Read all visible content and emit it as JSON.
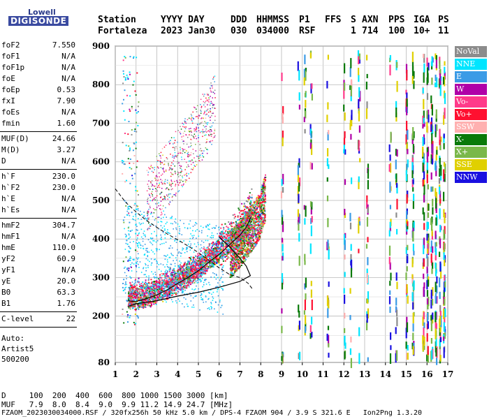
{
  "logo": {
    "line1": "Lowell",
    "line2": "DIGISONDE"
  },
  "header": {
    "row1": [
      "Station",
      "YYYY DAY",
      "DDD",
      "HHMMSS",
      "P1",
      "FFS",
      "S",
      "AXN",
      "PPS",
      "IGA",
      "PS"
    ],
    "row2": [
      "Fortaleza",
      "2023 Jan30",
      "030",
      "034000",
      "RSF",
      "1",
      "714",
      "100",
      "10+",
      "11"
    ]
  },
  "parameters": {
    "group1": [
      {
        "name": "foF2",
        "value": "7.550"
      },
      {
        "name": "foF1",
        "value": "N/A"
      },
      {
        "name": "foF1p",
        "value": "N/A"
      },
      {
        "name": "foE",
        "value": "N/A"
      },
      {
        "name": "foEp",
        "value": "0.53"
      },
      {
        "name": "fxI",
        "value": "7.90"
      },
      {
        "name": "foEs",
        "value": "N/A"
      },
      {
        "name": "fmin",
        "value": "1.60"
      }
    ],
    "group2": [
      {
        "name": "MUF(D)",
        "value": "24.66"
      },
      {
        "name": "M(D)",
        "value": "3.27"
      },
      {
        "name": "D",
        "value": "N/A"
      }
    ],
    "group3": [
      {
        "name": "h`F",
        "value": "230.0"
      },
      {
        "name": "h`F2",
        "value": "230.0"
      },
      {
        "name": "h`E",
        "value": "N/A"
      },
      {
        "name": "h`Es",
        "value": "N/A"
      }
    ],
    "group4": [
      {
        "name": "hmF2",
        "value": "304.7"
      },
      {
        "name": "hmF1",
        "value": "N/A"
      },
      {
        "name": "hmE",
        "value": "110.0"
      },
      {
        "name": "yF2",
        "value": "60.9"
      },
      {
        "name": "yF1",
        "value": "N/A"
      },
      {
        "name": "yE",
        "value": "20.0"
      },
      {
        "name": "B0",
        "value": "63.3"
      },
      {
        "name": "B1",
        "value": "1.76"
      }
    ],
    "group5": [
      {
        "name": "C-level",
        "value": "22"
      }
    ],
    "autoscaling": [
      "Auto:",
      "Artist5",
      "500200"
    ]
  },
  "legend": [
    {
      "label": "NoVal",
      "color": "#8c8c8c"
    },
    {
      "label": "NNE",
      "color": "#00e5ff"
    },
    {
      "label": "E",
      "color": "#3b9be6"
    },
    {
      "label": "W",
      "color": "#b000a8"
    },
    {
      "label": "Vo-",
      "color": "#ff3a8a"
    },
    {
      "label": "Vo+",
      "color": "#ff1030"
    },
    {
      "label": "SSW",
      "color": "#ffb0b0"
    },
    {
      "label": "X-",
      "color": "#0a7a0a"
    },
    {
      "label": "X+",
      "color": "#7ab84a"
    },
    {
      "label": "SSE",
      "color": "#e0d000"
    },
    {
      "label": "NNW",
      "color": "#1a10e0"
    }
  ],
  "footer": {
    "d_row": "D     100  200  400  600  800 1000 1500 3000 [km]",
    "muf_row": "MUF   7.9  8.0  8.4  9.0  9.9 11.2 14.9 24.7 [MHz]",
    "info_row": "FZAOM_2023030034000.RSF / 320fx256h 50 kHz 5.0 km / DPS-4 FZAOM 904 / 3.9 S 321.6 E   Ion2Png 1.3.20"
  },
  "chart_data": {
    "type": "scatter",
    "title": "",
    "xlabel": "",
    "ylabel": "",
    "xlim": [
      1,
      17
    ],
    "ylim": [
      80,
      900
    ],
    "x_ticks": [
      1,
      2,
      3,
      4,
      5,
      6,
      7,
      8,
      9,
      10,
      11,
      12,
      13,
      14,
      15,
      16,
      17
    ],
    "y_ticks": [
      80,
      200,
      300,
      400,
      500,
      600,
      700,
      800,
      900
    ],
    "y_ticks_labelled": [
      80,
      200,
      300,
      400,
      500,
      600,
      700,
      800,
      900
    ],
    "grid": true,
    "legend_placement": "right",
    "o_trace": [
      [
        1.6,
        240
      ],
      [
        2.0,
        238
      ],
      [
        2.5,
        245
      ],
      [
        3.0,
        255
      ],
      [
        3.5,
        268
      ],
      [
        4.0,
        285
      ],
      [
        4.5,
        300
      ],
      [
        5.0,
        318
      ],
      [
        5.5,
        340
      ],
      [
        6.0,
        360
      ],
      [
        6.5,
        385
      ],
      [
        7.0,
        410
      ],
      [
        7.3,
        430
      ],
      [
        7.55,
        460
      ]
    ],
    "x_trace": [
      [
        1.9,
        232
      ],
      [
        2.5,
        240
      ],
      [
        3.0,
        248
      ],
      [
        3.5,
        258
      ],
      [
        4.0,
        268
      ],
      [
        4.5,
        280
      ],
      [
        5.0,
        296
      ],
      [
        5.5,
        315
      ],
      [
        6.0,
        336
      ],
      [
        6.5,
        360
      ],
      [
        7.0,
        390
      ],
      [
        7.5,
        425
      ],
      [
        7.9,
        460
      ],
      [
        8.2,
        510
      ]
    ],
    "profile_dashed": [
      [
        1.0,
        530
      ],
      [
        1.5,
        495
      ],
      [
        2.0,
        470
      ],
      [
        2.5,
        448
      ],
      [
        3.0,
        430
      ],
      [
        3.5,
        413
      ],
      [
        4.0,
        398
      ],
      [
        4.5,
        382
      ],
      [
        5.0,
        365
      ],
      [
        5.5,
        345
      ],
      [
        6.0,
        325
      ],
      [
        6.5,
        308
      ],
      [
        7.0,
        300
      ],
      [
        7.4,
        285
      ],
      [
        7.6,
        270
      ]
    ],
    "profile_solid": [
      [
        1.6,
        225
      ],
      [
        2.0,
        232
      ],
      [
        3.0,
        240
      ],
      [
        4.0,
        252
      ],
      [
        5.0,
        262
      ],
      [
        6.0,
        275
      ],
      [
        7.0,
        290
      ],
      [
        7.5,
        305
      ],
      [
        7.3,
        330
      ],
      [
        7.0,
        350
      ],
      [
        6.5,
        380
      ],
      [
        6.2,
        395
      ],
      [
        6.0,
        405
      ]
    ],
    "multihop_trace": [
      [
        2.5,
        500
      ],
      [
        3.0,
        540
      ],
      [
        3.5,
        575
      ],
      [
        4.0,
        610
      ],
      [
        4.5,
        645
      ],
      [
        5.0,
        685
      ],
      [
        5.5,
        720
      ],
      [
        5.8,
        760
      ]
    ],
    "vertical_interference_freqs": [
      9.0,
      9.8,
      10.1,
      10.4,
      11.2,
      12.0,
      12.3,
      12.7,
      13.1,
      14.2,
      14.5,
      15.0,
      15.3,
      15.8,
      16.0,
      16.2,
      16.4,
      16.6,
      16.8
    ]
  }
}
